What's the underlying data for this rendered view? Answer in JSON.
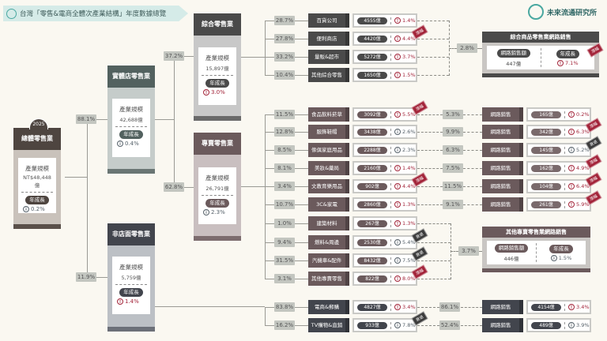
{
  "title": "台灣「零售&電商全體次產業結構」年度數據總覽",
  "logo": "未來流通研究所",
  "labels": {
    "scale": "產業規模",
    "growth": "年成長",
    "online_sales": "網路銷售額"
  },
  "colors": {
    "up": "#a3253a",
    "down": "#56616a",
    "background": "#faf8f1"
  },
  "total": {
    "year": "2025",
    "name": "總體零售業",
    "scale": "NT$48,448億",
    "growth": "0.2%",
    "dir": "down"
  },
  "physical": {
    "pct": "88.1%",
    "name": "實體店零售業",
    "scale": "42,688億",
    "growth": "0.4%",
    "dir": "down"
  },
  "nonstore": {
    "pct": "11.9%",
    "name": "非店面零售業",
    "scale": "5,759億",
    "growth": "1.4%",
    "dir": "up"
  },
  "general": {
    "pct": "37.2%",
    "name": "綜合零售業",
    "scale": "15,897億",
    "growth": "3.0%",
    "dir": "up"
  },
  "specialty": {
    "pct": "62.8%",
    "name": "專賣零售業",
    "scale": "26,791億",
    "growth": "2.3%",
    "dir": "down"
  },
  "general_rows": [
    {
      "pct": "28.7%",
      "name": "百貨公司",
      "value": "4555億",
      "growth": "1.4%",
      "dir": "up"
    },
    {
      "pct": "27.8%",
      "name": "便利商店",
      "value": "4420億",
      "growth": "4.4%",
      "dir": "up",
      "tag": "漲幅"
    },
    {
      "pct": "33.2%",
      "name": "量販&超市",
      "value": "5272億",
      "growth": "3.7%",
      "dir": "up"
    },
    {
      "pct": "10.4%",
      "name": "其他綜合零售",
      "value": "1650億",
      "growth": "1.5%",
      "dir": "up"
    }
  ],
  "general_online": {
    "pct": "2.8%",
    "title": "綜合商品零售業網路銷售",
    "value": "447億",
    "growth": "7.1%",
    "dir": "up",
    "tag": "漲幅"
  },
  "specialty_rows": [
    {
      "pct": "11.5%",
      "name": "食品飲料菸草",
      "value": "3092億",
      "growth": "5.5%",
      "dir": "up",
      "tag": "漲幅",
      "online": {
        "pct": "5.3%",
        "name": "網路銷售",
        "value": "165億",
        "growth": "0.2%",
        "dir": "up"
      }
    },
    {
      "pct": "12.8%",
      "name": "服飾鞋帽",
      "value": "3438億",
      "growth": "2.6%",
      "dir": "down",
      "online": {
        "pct": "9.9%",
        "name": "網路銷售",
        "value": "342億",
        "growth": "6.3%",
        "dir": "up",
        "tag": "漲幅"
      }
    },
    {
      "pct": "8.5%",
      "name": "傢俱家庭用品",
      "value": "2288億",
      "growth": "2.3%",
      "dir": "down",
      "online": {
        "pct": "6.3%",
        "name": "網路銷售",
        "value": "145億",
        "growth": "5.2%",
        "dir": "down",
        "tag": "衰退"
      }
    },
    {
      "pct": "8.1%",
      "name": "美妝&藥局",
      "value": "2160億",
      "growth": "1.4%",
      "dir": "up",
      "online": {
        "pct": "7.5%",
        "name": "網路銷售",
        "value": "162億",
        "growth": "4.9%",
        "dir": "up",
        "tag": "漲幅"
      }
    },
    {
      "pct": "3.4%",
      "name": "文教育樂用品",
      "value": "902億",
      "growth": "4.4%",
      "dir": "up",
      "tag": "漲幅",
      "online": {
        "pct": "11.5%",
        "name": "網路銷售",
        "value": "104億",
        "growth": "6.4%",
        "dir": "up",
        "tag": "漲幅"
      }
    },
    {
      "pct": "10.7%",
      "name": "3C&家電",
      "value": "2860億",
      "growth": "1.3%",
      "dir": "up",
      "online": {
        "pct": "9.1%",
        "name": "網路銷售",
        "value": "261億",
        "growth": "5.9%",
        "dir": "up",
        "tag": "漲幅"
      }
    },
    {
      "pct": "1.0%",
      "name": "建築材料",
      "value": "267億",
      "growth": "1.3%",
      "dir": "up"
    },
    {
      "pct": "9.4%",
      "name": "燃料&周邊",
      "value": "2530億",
      "growth": "5.4%",
      "dir": "down",
      "tag": "衰退"
    },
    {
      "pct": "31.5%",
      "name": "汽機車&配件",
      "value": "8432億",
      "growth": "7.5%",
      "dir": "down",
      "tag": "衰退"
    },
    {
      "pct": "3.1%",
      "name": "其他專賣零售",
      "value": "822億",
      "growth": "8.0%",
      "dir": "up",
      "tag": "漲幅"
    }
  ],
  "specialty_online": {
    "pct": "3.7%",
    "title": "其他專賣零售業網路銷售",
    "value": "446億",
    "growth": "1.5%",
    "dir": "down"
  },
  "nonstore_rows": [
    {
      "pct": "83.8%",
      "name": "電商&郵購",
      "value": "4827億",
      "growth": "3.4%",
      "dir": "up",
      "online": {
        "pct": "86.1%",
        "name": "網路銷售",
        "value": "4154億",
        "growth": "3.4%",
        "dir": "up"
      }
    },
    {
      "pct": "16.2%",
      "name": "TV購物&直銷",
      "value": "933億",
      "growth": "7.8%",
      "dir": "down",
      "tag": "衰退",
      "online": {
        "pct": "52.4%",
        "name": "網路銷售",
        "value": "489億",
        "growth": "3.9%",
        "dir": "down"
      }
    }
  ]
}
